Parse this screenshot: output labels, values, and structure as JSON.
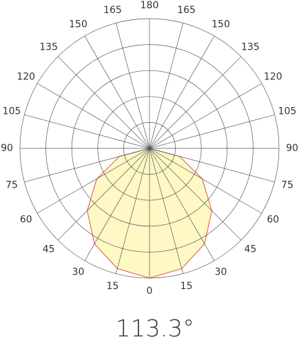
{
  "chart_data": {
    "type": "polar",
    "title": "113.3°",
    "angle_ticks": [
      0,
      15,
      30,
      45,
      60,
      75,
      90,
      105,
      120,
      135,
      150,
      165,
      180
    ],
    "rlim": [
      0,
      100
    ],
    "rticks": [
      20,
      40,
      60,
      80,
      100
    ],
    "x": [
      -90,
      -75,
      -60,
      -45,
      -30,
      -15,
      0,
      15,
      30,
      45,
      60,
      75,
      90
    ],
    "series": [
      {
        "color": "#e05050",
        "fill": "#fdf8c4",
        "values": [
          0,
          24,
          47,
          68,
          85,
          96,
          100,
          96,
          85,
          68,
          47,
          24,
          0
        ]
      }
    ]
  }
}
